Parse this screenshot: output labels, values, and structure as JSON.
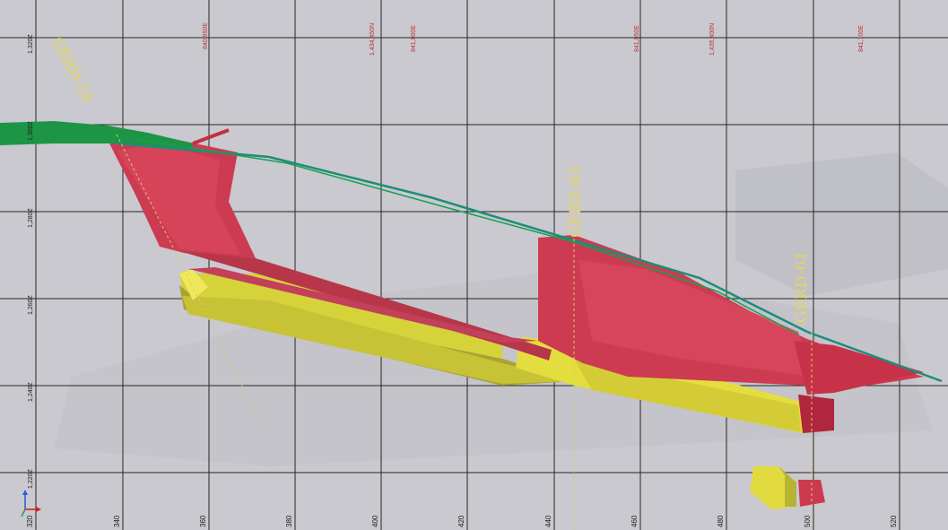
{
  "viewer": {
    "background_color": "#c9c9cf",
    "grid_color": "#262626",
    "ore_color": "#d0344e",
    "rock_color": "#e0dc3c",
    "surface_color": "#1e9c4c"
  },
  "elevation_labels": [
    "1,320Z",
    "1,300Z",
    "1,280Z",
    "1,260Z",
    "1,240Z",
    "1,220Z"
  ],
  "x_labels": [
    "320",
    "340",
    "360",
    "380",
    "400",
    "420",
    "440",
    "460",
    "480",
    "500",
    "520"
  ],
  "coord_labels": [
    "840,950E",
    "1,434,450N",
    "841,000E",
    "841,050E",
    "1,435,400N",
    "841,100E"
  ],
  "drillholes": [
    "GERD-54",
    "GERD-63",
    "GERD-61"
  ],
  "axis_triad": {
    "icon": "xyz-axis-triad-icon"
  }
}
